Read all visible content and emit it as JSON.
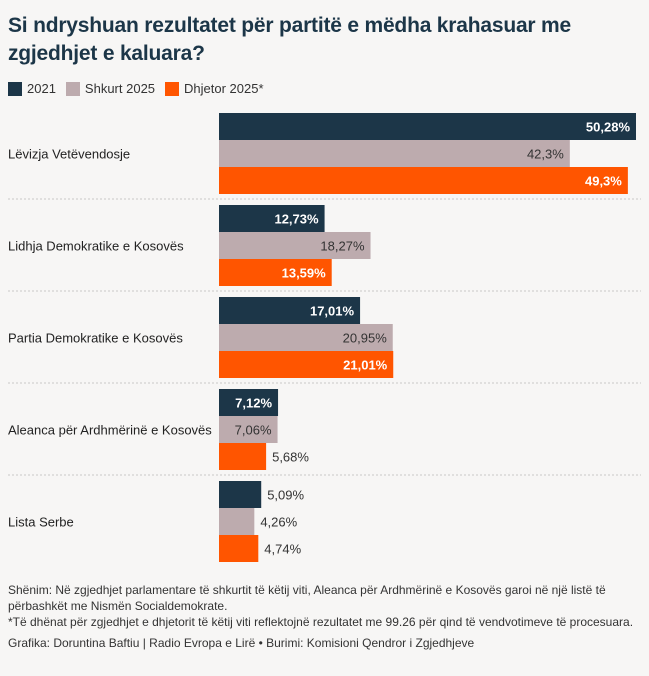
{
  "title": "Si ndryshuan rezultatet për partitë e mëdha krahasuar me zgjedhjet e kaluara?",
  "chart_data": {
    "type": "bar",
    "orientation": "horizontal",
    "title": "Si ndryshuan rezultatet për partitë e mëdha krahasuar me zgjedhjet e kaluara?",
    "categories": [
      "Lëvizja Vetëvendosje",
      "Lidhja Demokratike e Kosovës",
      "Partia Demokratike e Kosovës",
      "Aleanca për Ardhmërinë e Kosovës",
      "Lista Serbe"
    ],
    "series": [
      {
        "name": "2021",
        "color": "#1c3648",
        "label_color": "#ffffff",
        "values": [
          50.28,
          12.73,
          17.01,
          7.12,
          5.09
        ],
        "labels": [
          "50,28%",
          "12,73%",
          "17,01%",
          "7,12%",
          "5,09%"
        ]
      },
      {
        "name": "Shkurt 2025",
        "color": "#bdabae",
        "label_color": "#333333",
        "values": [
          42.3,
          18.27,
          20.95,
          7.06,
          4.26
        ],
        "labels": [
          "42,3%",
          "18,27%",
          "20,95%",
          "7,06%",
          "4,26%"
        ]
      },
      {
        "name": "Dhjetor 2025*",
        "color": "#ff5500",
        "label_color": "#ffffff",
        "values": [
          49.3,
          13.59,
          21.01,
          5.68,
          4.74
        ],
        "labels": [
          "49,3%",
          "13,59%",
          "21,01%",
          "5,68%",
          "4,74%"
        ]
      }
    ],
    "xlim": [
      0,
      50.28
    ],
    "legend": "top-left",
    "grid": false
  },
  "footer": {
    "note": "Shënim: Në zgjedhjet parlamentare të shkurtit të këtij viti, Aleanca për Ardhmërinë e Kosovës garoi në një listë të përbashkët me Nismën Socialdemokrate.",
    "asterisk_note": "*Të dhënat për zgjedhjet e dhjetorit të këtij viti reflektojnë rezultatet me 99.26 për qind të vendvotimeve të procesuara.",
    "credit": "Grafika: Doruntina Baftiu | Radio Evropa e Lirë • Burimi: Komisioni Qendror i Zgjedhjeve"
  }
}
